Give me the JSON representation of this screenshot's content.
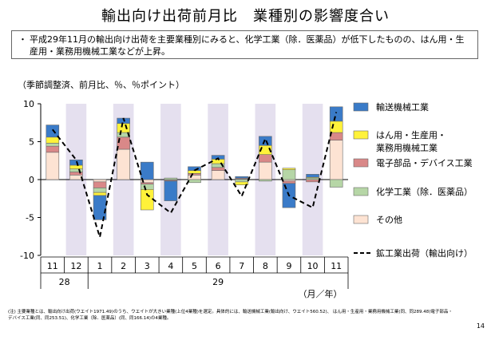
{
  "title": "輸出向け出荷前月比　業種別の影響度合い",
  "summary": {
    "bullet": "・",
    "text": "平成29年11月の輸出向け出荷を主要業種別にみると、化学工業（除．医薬品）が低下したものの、はん用・生産用・業務用機械工業などが上昇。"
  },
  "unit_label": "（季節調整済、前月比、％、％ポイント）",
  "period_label": "（月／年）",
  "note": "(注) 主要業種とは、輸出向け出荷(ウエイト1971.49)のうち、ウエイトが大きい業種(上位4業種)を選定。具体的には、輸送機械工業(輸出向け、ウエイト560.52)、 はん用・生産用・業務用機械工業(同、同289.48)電子部品・デバイス工業(同、同253.51)、化学工業（除．医薬品）(同、同166.14)の4業種。",
  "page_number": "14",
  "colors": {
    "transport": "#3a7bc8",
    "machinery": "#fff23a",
    "electronics": "#d98888",
    "chemical": "#b6d6a6",
    "other": "#fde3d3",
    "shade": "#e5e0ef",
    "line": "#000000"
  },
  "chart_data": {
    "type": "bar",
    "stacked": true,
    "ylim": [
      -10,
      10
    ],
    "yticks": [
      10,
      5,
      0,
      -5,
      -10
    ],
    "categories": [
      "11",
      "12",
      "1",
      "2",
      "3",
      "4",
      "5",
      "6",
      "7",
      "8",
      "9",
      "10",
      "11"
    ],
    "year_labels": [
      {
        "label": "28",
        "from": 0,
        "to": 1
      },
      {
        "label": "29",
        "from": 2,
        "to": 12
      }
    ],
    "shaded_months": [
      1,
      3,
      5,
      7,
      9,
      11
    ],
    "series": [
      {
        "key": "other",
        "name": "その他",
        "values": [
          3.6,
          0.6,
          -0.3,
          4.0,
          -0.4,
          -0.1,
          0.6,
          1.2,
          0.1,
          2.3,
          -0.2,
          0.0,
          5.2
        ]
      },
      {
        "key": "electronics",
        "name": "電子部品・デバイス工業",
        "values": [
          0.8,
          0.4,
          -0.8,
          1.6,
          -0.2,
          -0.1,
          0.2,
          0.4,
          0.1,
          1.0,
          -0.3,
          -0.3,
          1.0
        ]
      },
      {
        "key": "chemical",
        "name": "化学工業（除．医薬品）",
        "values": [
          0.4,
          0.4,
          -0.6,
          0.6,
          -0.7,
          0.2,
          -0.4,
          0.5,
          -0.3,
          -0.2,
          1.3,
          0.2,
          -1.0
        ]
      },
      {
        "key": "machinery",
        "name": "はん用・生産用・業務用機械工業",
        "values": [
          0.8,
          0.5,
          -0.4,
          1.2,
          -2.7,
          0.0,
          0.4,
          0.6,
          -0.4,
          1.2,
          0.2,
          0.1,
          1.5
        ]
      },
      {
        "key": "transport",
        "name": "輸送機械工業",
        "values": [
          1.6,
          0.7,
          -3.2,
          0.7,
          2.3,
          -2.6,
          0.5,
          0.5,
          0.2,
          1.2,
          -3.2,
          0.4,
          1.9
        ]
      }
    ],
    "line": {
      "name": "鉱工業出荷（輸出向け）",
      "values": [
        6.6,
        2.6,
        -7.6,
        8.1,
        -2.0,
        -4.4,
        1.2,
        2.8,
        -2.2,
        5.4,
        -2.1,
        -3.7,
        8.9
      ]
    },
    "legend_position": "right"
  }
}
